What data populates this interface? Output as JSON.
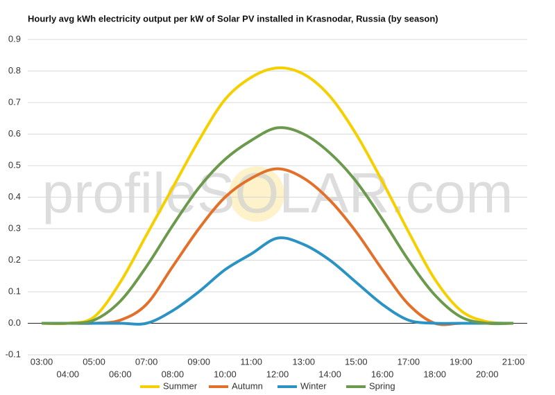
{
  "chart_data": {
    "type": "line",
    "title": "Hourly avg kWh electricity output per kW of Solar PV installed in Krasnodar, Russia (by season)",
    "watermark": "profileSOLAR.com",
    "categories": [
      "03:00",
      "04:00",
      "05:00",
      "06:00",
      "07:00",
      "08:00",
      "09:00",
      "10:00",
      "11:00",
      "12:00",
      "13:00",
      "14:00",
      "15:00",
      "16:00",
      "17:00",
      "18:00",
      "19:00",
      "20:00",
      "21:00"
    ],
    "series": [
      {
        "name": "Summer",
        "color": "#f5d000",
        "values": [
          0,
          0,
          0.02,
          0.13,
          0.28,
          0.43,
          0.58,
          0.71,
          0.78,
          0.81,
          0.79,
          0.72,
          0.6,
          0.45,
          0.29,
          0.14,
          0.04,
          0.005,
          0
        ]
      },
      {
        "name": "Autumn",
        "color": "#e2702a",
        "values": [
          0,
          0,
          0,
          0.01,
          0.06,
          0.18,
          0.3,
          0.4,
          0.46,
          0.49,
          0.46,
          0.39,
          0.29,
          0.17,
          0.06,
          0,
          0,
          0,
          0
        ]
      },
      {
        "name": "Winter",
        "color": "#2a93c4",
        "values": [
          0,
          0,
          0,
          0,
          0,
          0.04,
          0.1,
          0.17,
          0.22,
          0.27,
          0.25,
          0.2,
          0.13,
          0.06,
          0.01,
          0,
          0,
          0,
          0
        ]
      },
      {
        "name": "Spring",
        "color": "#6b9a4c",
        "values": [
          0,
          0,
          0.01,
          0.07,
          0.18,
          0.31,
          0.43,
          0.52,
          0.58,
          0.62,
          0.6,
          0.54,
          0.45,
          0.33,
          0.2,
          0.09,
          0.02,
          0,
          0
        ]
      }
    ],
    "ylim": [
      -0.1,
      0.9
    ],
    "yticks": [
      -0.1,
      {
        "value": 0,
        "label": "0.0"
      },
      0.1,
      0.2,
      0.3,
      0.4,
      0.5,
      0.6,
      0.7,
      0.8,
      0.9
    ],
    "grid": true
  }
}
